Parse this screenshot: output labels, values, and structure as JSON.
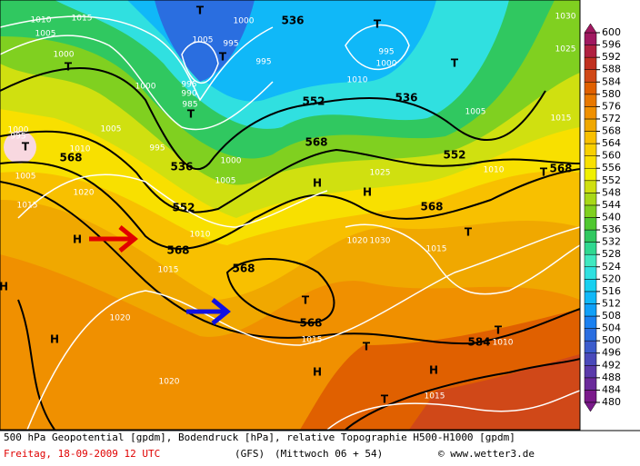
{
  "map": {
    "height_labels": [
      "536",
      "552",
      "536",
      "552",
      "568",
      "568",
      "568",
      "568",
      "536",
      "552",
      "568",
      "568",
      "568",
      "584"
    ],
    "pressure_labels": [
      "1010",
      "1015",
      "1005",
      "1000",
      "1005",
      "1000",
      "995",
      "990",
      "985",
      "995",
      "1000",
      "1005",
      "1010",
      "1015",
      "1010",
      "1020",
      "1015",
      "1000",
      "995",
      "1005",
      "1000",
      "995",
      "1005",
      "995",
      "1000",
      "995",
      "1010",
      "1005",
      "1015",
      "1010",
      "1025",
      "1020",
      "1030",
      "1015",
      "1020",
      "1015",
      "1020",
      "1015",
      "1030",
      "1025",
      "1010"
    ],
    "centers": [
      "T",
      "T",
      "T",
      "T",
      "T",
      "T",
      "T",
      "T",
      "T",
      "T",
      "T",
      "T",
      "T",
      "H",
      "H",
      "H",
      "H",
      "H",
      "H",
      "H"
    ]
  },
  "scale": {
    "values": [
      480,
      484,
      488,
      492,
      496,
      500,
      504,
      508,
      512,
      516,
      520,
      524,
      528,
      532,
      536,
      540,
      544,
      548,
      552,
      556,
      560,
      564,
      568,
      572,
      576,
      580,
      584,
      588,
      592,
      596,
      600
    ],
    "colors": [
      "#7a1a8a",
      "#6a2a9a",
      "#5a3aaa",
      "#4a4aba",
      "#3c5ccc",
      "#2a6ee0",
      "#1a80f0",
      "#10a0f8",
      "#10b8f8",
      "#18d0f0",
      "#30e0e0",
      "#40e8c0",
      "#30d890",
      "#30c860",
      "#50c830",
      "#80d020",
      "#a8d818",
      "#d0e010",
      "#f0f000",
      "#f8e000",
      "#f8d000",
      "#f8c000",
      "#f0a800",
      "#f09000",
      "#e87800",
      "#e06000",
      "#d04818",
      "#c03020",
      "#b02040",
      "#a01860"
    ]
  },
  "footer": {
    "line1": "500 hPa Geopotential [gpdm], Bodendruck [hPa], relative Topographie H500-H1000 [gpdm]",
    "date": "Freitag, 18-09-2009   12 UTC",
    "model": "(GFS)",
    "run": "(Mittwoch 06 + 54)",
    "site": "© www.wetter3.de"
  }
}
